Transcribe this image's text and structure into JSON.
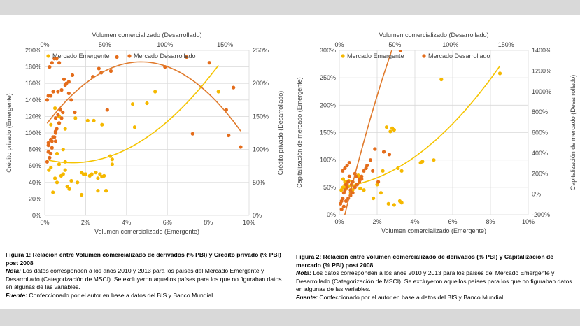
{
  "colors": {
    "emergente": "#f5b800",
    "desarrollado": "#e46c1a",
    "trend_emergente": "#f5c400",
    "trend_desarrollado": "#e07a2c",
    "grid": "#d9d9d9",
    "axis_text": "#404040"
  },
  "chart_data": [
    {
      "type": "scatter",
      "title": "",
      "xlabel_bottom": "Volumen comercializado (Emergente)",
      "xlabel_top": "Volumen comercializado (Desarrollado)",
      "ylabel_left": "Crédito privado (Emergente)",
      "ylabel_right": "Crédito privado (Desarrollado)",
      "x_bottom_ticks": [
        "0%",
        "2%",
        "4%",
        "6%",
        "8%",
        "10%"
      ],
      "x_top_ticks": [
        "0%",
        "50%",
        "100%",
        "150%"
      ],
      "y_left_ticks": [
        "0%",
        "20%",
        "40%",
        "60%",
        "80%",
        "100%",
        "120%",
        "140%",
        "160%",
        "180%",
        "200%"
      ],
      "y_right_ticks": [
        "0%",
        "50%",
        "100%",
        "150%",
        "200%",
        "250%"
      ],
      "xlim_bottom": [
        0,
        10
      ],
      "xlim_top": [
        0,
        170
      ],
      "ylim_left": [
        0,
        200
      ],
      "ylim_right": [
        0,
        250
      ],
      "legend_position": "top-left",
      "series": [
        {
          "name": "Mercado Emergente",
          "axis": "bottom-left",
          "x": [
            0.2,
            0.3,
            0.4,
            0.5,
            0.6,
            0.7,
            0.8,
            0.9,
            1.0,
            1.0,
            1.1,
            1.2,
            1.3,
            0.5,
            0.7,
            0.3,
            1.8,
            1.9,
            2.0,
            2.2,
            2.3,
            2.5,
            2.6,
            2.7,
            2.8,
            2.9,
            3.0,
            3.2,
            3.3,
            3.3,
            2.6,
            1.8,
            1.6,
            4.3,
            4.4,
            5.0,
            5.4,
            8.5,
            0.9,
            0.6,
            2.8,
            0.7,
            1.0,
            1.5,
            2.1,
            2.4,
            3.0
          ],
          "y": [
            55,
            58,
            28,
            45,
            40,
            62,
            48,
            50,
            65,
            55,
            35,
            32,
            42,
            130,
            120,
            110,
            52,
            50,
            50,
            48,
            50,
            52,
            45,
            50,
            47,
            48,
            30,
            72,
            68,
            62,
            30,
            25,
            40,
            135,
            107,
            136,
            150,
            150,
            80,
            75,
            110,
            112,
            105,
            118,
            115,
            115,
            30
          ]
        },
        {
          "name": "Mercado Desarrollado",
          "axis": "top-left",
          "x": [
            2,
            4,
            5,
            3,
            6,
            8,
            9,
            10,
            12,
            14,
            15,
            2,
            3,
            5,
            7,
            9,
            11,
            13,
            4,
            6,
            8,
            10,
            12,
            16,
            18,
            20,
            22,
            25,
            3,
            5,
            7,
            9,
            11,
            14,
            17,
            20,
            23,
            40,
            45,
            47,
            52,
            60,
            55,
            100,
            118,
            137,
            151,
            157,
            163,
            153,
            123,
            3,
            6,
            9
          ],
          "y": [
            65,
            70,
            75,
            85,
            90,
            95,
            100,
            105,
            112,
            118,
            125,
            140,
            145,
            145,
            150,
            118,
            122,
            128,
            180,
            185,
            190,
            190,
            185,
            165,
            160,
            148,
            140,
            125,
            88,
            92,
            95,
            102,
            150,
            152,
            158,
            162,
            170,
            168,
            178,
            173,
            128,
            192,
            175,
            180,
            192,
            185,
            128,
            155,
            83,
            97,
            99,
            77,
            82,
            90
          ]
        }
      ],
      "trendlines": [
        {
          "series": "Mercado Emergente",
          "type": "polynomial"
        },
        {
          "series": "Mercado Desarrollado",
          "type": "polynomial"
        }
      ]
    },
    {
      "type": "scatter",
      "title": "",
      "xlabel_bottom": "Volumen comercializado (Emergente)",
      "xlabel_top": "Volumen comercializado (Desarrollado)",
      "ylabel_left": "Capitalización de mercado (Emergente)",
      "ylabel_right": "Capitalización de mercado (Desarrollado)",
      "x_bottom_ticks": [
        "0%",
        "2%",
        "4%",
        "6%",
        "8%",
        "10%"
      ],
      "x_top_ticks": [
        "0%",
        "50%",
        "100%",
        "150%"
      ],
      "y_left_ticks": [
        "0%",
        "50%",
        "100%",
        "150%",
        "200%",
        "250%",
        "300%"
      ],
      "y_right_ticks": [
        "-200%",
        "0%",
        "200%",
        "400%",
        "600%",
        "800%",
        "1000%",
        "1200%",
        "1400%"
      ],
      "xlim_bottom": [
        0,
        10
      ],
      "xlim_top": [
        0,
        170
      ],
      "ylim_left": [
        0,
        300
      ],
      "ylim_right": [
        -200,
        1400
      ],
      "legend_position": "top-left",
      "series": [
        {
          "name": "Mercado Emergente",
          "axis": "bottom-left",
          "x": [
            0.1,
            0.2,
            0.3,
            0.35,
            0.4,
            0.5,
            0.6,
            0.7,
            0.8,
            0.9,
            1.0,
            1.1,
            1.3,
            0.2,
            0.3,
            0.4,
            1.8,
            2.0,
            2.2,
            2.3,
            2.6,
            2.9,
            3.1,
            3.3,
            2.8,
            2.5,
            2.7,
            2.9,
            3.2,
            3.3,
            4.3,
            4.4,
            5.0,
            5.4,
            8.5,
            1.0,
            0.5,
            0.8
          ],
          "y": [
            45,
            50,
            55,
            48,
            60,
            52,
            40,
            45,
            50,
            55,
            70,
            48,
            45,
            65,
            60,
            55,
            30,
            55,
            40,
            80,
            20,
            18,
            85,
            80,
            158,
            160,
            152,
            155,
            25,
            22,
            95,
            97,
            100,
            247,
            258,
            72,
            62,
            52
          ]
        },
        {
          "name": "Mercado Desarrollado",
          "axis": "top-left",
          "x": [
            1,
            2,
            3,
            4,
            5,
            6,
            7,
            8,
            9,
            10,
            11,
            12,
            3,
            5,
            7,
            9,
            14,
            15,
            18,
            20,
            22,
            24,
            2,
            4,
            6,
            8,
            10,
            12,
            14,
            16,
            18,
            20,
            25,
            28,
            32,
            40,
            30,
            35,
            45,
            55,
            118,
            122,
            135,
            145,
            153
          ],
          "y": [
            20,
            25,
            30,
            40,
            45,
            55,
            50,
            60,
            70,
            45,
            55,
            60,
            80,
            85,
            90,
            95,
            75,
            70,
            65,
            70,
            80,
            85,
            10,
            15,
            25,
            30,
            35,
            40,
            50,
            55,
            60,
            65,
            90,
            100,
            120,
            115,
            80,
            60,
            110,
            300,
            1180,
            1220,
            370,
            350,
            320
          ]
        }
      ],
      "trendlines": [
        {
          "series": "Mercado Emergente",
          "type": "polynomial"
        },
        {
          "series": "Mercado Desarrollado",
          "type": "polynomial"
        }
      ]
    }
  ],
  "captions": [
    {
      "fig": "Figura 1: Relación entre Volumen comercializado de derivados (% PBI) y Crédito privado (% PBI) post 2008",
      "note_label": "Nota:",
      "note": " Los datos corresponden a los años 2010 y 2013 para los países del Mercado Emergente y Desarrollado (Categorización de MSCI). Se excluyeron aquellos países para los que no figuraban datos en algunas de las variables.",
      "source_label": "Fuente:",
      "source": " Confeccionado por el autor en base a datos del BIS y Banco Mundial."
    },
    {
      "fig": "Figura 2: Relacion entre Volumen comercializado de derivados (% PBI) y Capitalizacion de mercado (% PBI) post 2008",
      "note_label": "Nota:",
      "note": " Los datos corresponden a los años 2010 y 2013 para los países del Mercado Emergente y Desarrollado (Categorización de MSCI). Se excluyeron aquellos países para los que no figuraban datos en algunas de las variables.",
      "source_label": "Fuente:",
      "source": " Confeccionado por el autor en base a datos del BIS y Banco Mundial."
    }
  ]
}
